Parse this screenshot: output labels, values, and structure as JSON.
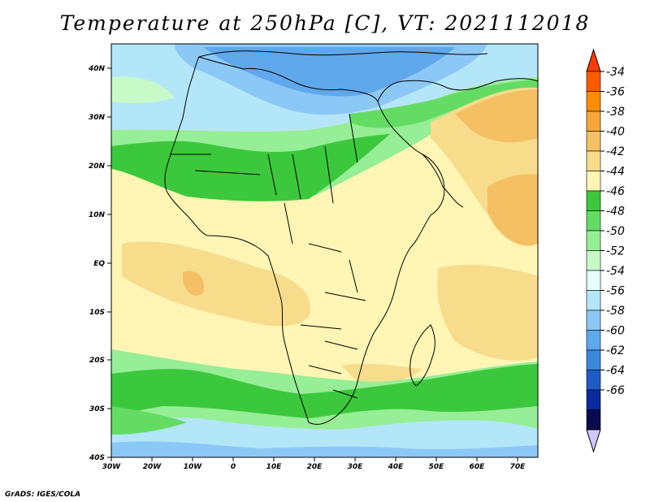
{
  "title": "Temperature at 250hPa [C], VT: 2021112018",
  "credit": "GrADS: IGES/COLA",
  "lat_labels": [
    "40N",
    "30N",
    "20N",
    "10N",
    "EQ",
    "10S",
    "20S",
    "30S",
    "40S"
  ],
  "lon_labels": [
    "30W",
    "20W",
    "10W",
    "0",
    "10E",
    "20E",
    "30E",
    "40E",
    "50E",
    "60E",
    "70E"
  ],
  "colorbar": {
    "labels": [
      "-34",
      "-36",
      "-38",
      "-40",
      "-42",
      "-44",
      "-46",
      "-48",
      "-50",
      "-52",
      "-54",
      "-56",
      "-58",
      "-60",
      "-62",
      "-64",
      "-66"
    ],
    "colors": [
      "#ff5a00",
      "#ff8c00",
      "#f7a63a",
      "#f5c063",
      "#f7dc8c",
      "#fff5b4",
      "#3cc83c",
      "#64dc64",
      "#96ee96",
      "#c8fac8",
      "#e6ffff",
      "#b4e6fa",
      "#8cc8f5",
      "#5fa8ec",
      "#3c87dc",
      "#1e5ac8",
      "#0a28a0",
      "#0a0a50"
    ],
    "top_arrow_color": "#ff3c00",
    "bottom_arrow_color": "#d2c8ff"
  }
}
